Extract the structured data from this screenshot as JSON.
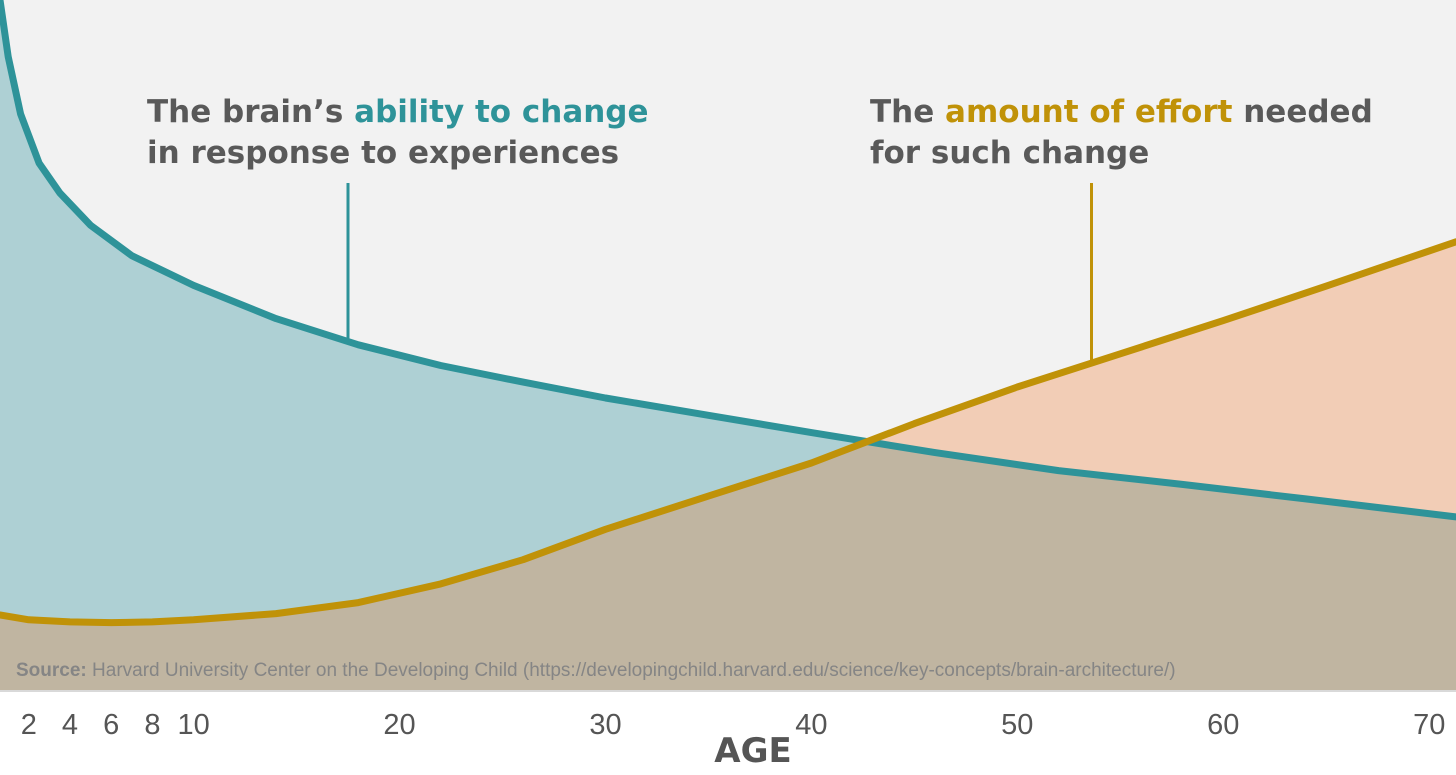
{
  "chart_data": {
    "type": "area",
    "xlabel": "AGE",
    "xlim": [
      0.6,
      71.3
    ],
    "ylim": [
      0,
      100
    ],
    "x_ticks": [
      2,
      4,
      6,
      8,
      10,
      20,
      30,
      40,
      50,
      60,
      70
    ],
    "grid": false,
    "legend": "none",
    "series": [
      {
        "key": "plasticity",
        "color": "#2e9399",
        "fill": "#aed0d4",
        "x": [
          0.6,
          1.0,
          1.6,
          2.5,
          3.5,
          5.0,
          7.0,
          10.0,
          14.0,
          18.0,
          22.0,
          26.0,
          30.0,
          35.0,
          40.0,
          46.0,
          52.0,
          58.0,
          64.0,
          71.3
        ],
        "y": [
          100.0,
          91.8,
          83.5,
          76.4,
          72.1,
          67.4,
          63.0,
          58.7,
          53.9,
          50.1,
          47.1,
          44.7,
          42.4,
          39.9,
          37.4,
          34.5,
          31.9,
          29.9,
          27.8,
          25.2
        ]
      },
      {
        "key": "effort",
        "color": "#c09208",
        "fill": "#f2cdb6",
        "x": [
          0.6,
          2.0,
          4.0,
          6.0,
          8.0,
          10.0,
          14.0,
          18.0,
          22.0,
          26.0,
          30.0,
          35.0,
          40.0,
          45.0,
          50.0,
          55.0,
          60.0,
          65.0,
          71.3
        ],
        "y": [
          11.0,
          10.3,
          10.0,
          9.9,
          10.0,
          10.3,
          11.2,
          12.8,
          15.5,
          19.0,
          23.4,
          28.2,
          33.0,
          38.7,
          44.0,
          48.8,
          53.6,
          58.6,
          65.0
        ]
      }
    ],
    "overlap_fill": "#c0b5a1",
    "background": "#f2f2f2",
    "annotations": [
      {
        "key": "plasticity",
        "x_point": 17.5,
        "lines": [
          [
            {
              "text": "The brain’s ",
              "color": "#595959"
            },
            {
              "text": "ability to change",
              "color": "#2e9399"
            }
          ],
          [
            {
              "text": "in response to experiences",
              "color": "#595959"
            }
          ]
        ]
      },
      {
        "key": "effort",
        "x_point": 53.6,
        "lines": [
          [
            {
              "text": "The ",
              "color": "#595959"
            },
            {
              "text": "amount of effort",
              "color": "#c09208"
            },
            {
              "text": " needed",
              "color": "#595959"
            }
          ],
          [
            {
              "text": "for such change",
              "color": "#595959"
            }
          ]
        ]
      }
    ],
    "source": {
      "label": "Source:",
      "text": " Harvard University Center on the Developing Child (https://developingchild.harvard.edu/science/key-concepts/brain-architecture/)"
    }
  }
}
